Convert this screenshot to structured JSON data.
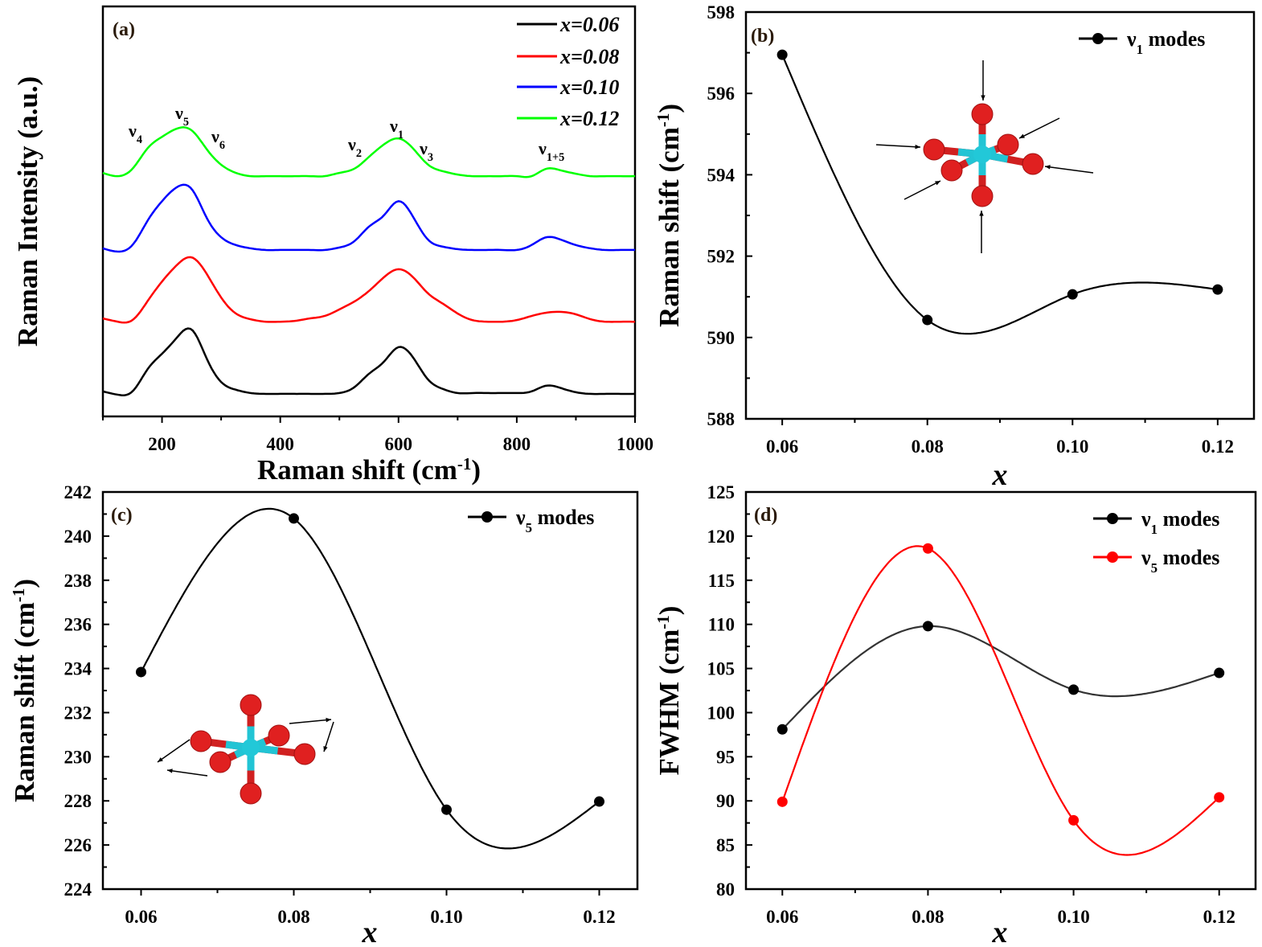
{
  "colors": {
    "black": "#000000",
    "red": "#ff0000",
    "blue": "#0000ff",
    "green": "#00ff00",
    "atom_o": "#e02020",
    "atom_center": "#20c8d8"
  },
  "chart_data": [
    {
      "panel": "(a)",
      "type": "line",
      "xlabel": {
        "text": "Raman shift (cm",
        "sup": "-1",
        "tail": ")"
      },
      "ylabel": {
        "text": "Raman Intensity (a.u.)"
      },
      "xlim": [
        100,
        1000
      ],
      "xticks": [
        "200",
        "400",
        "600",
        "800",
        "1000"
      ],
      "legend_position": "top-right",
      "x": [
        100,
        125,
        150,
        175,
        200,
        225,
        250,
        275,
        300,
        325,
        350,
        375,
        400,
        425,
        450,
        475,
        500,
        525,
        550,
        575,
        600,
        625,
        650,
        675,
        700,
        725,
        750,
        775,
        800,
        825,
        850,
        875,
        900,
        925,
        950,
        975,
        1000
      ],
      "series": [
        {
          "name": "x=0.06",
          "color": "#000000",
          "values": [
            0.61,
            0.53,
            0.61,
            1.14,
            1.53,
            1.92,
            2.12,
            1.43,
            0.84,
            0.65,
            0.57,
            0.55,
            0.55,
            0.55,
            0.55,
            0.55,
            0.57,
            0.71,
            1.04,
            1.33,
            1.69,
            1.43,
            0.9,
            0.67,
            0.57,
            0.57,
            0.57,
            0.57,
            0.57,
            0.61,
            0.75,
            0.69,
            0.59,
            0.55,
            0.55,
            0.55,
            0.55
          ]
        },
        {
          "name": "x=0.08",
          "color": "#ff0000",
          "values": [
            2.39,
            2.31,
            2.35,
            2.8,
            3.29,
            3.69,
            3.88,
            3.49,
            2.9,
            2.51,
            2.37,
            2.31,
            2.31,
            2.33,
            2.39,
            2.45,
            2.61,
            2.8,
            3.06,
            3.39,
            3.59,
            3.39,
            3.0,
            2.75,
            2.51,
            2.35,
            2.31,
            2.31,
            2.35,
            2.45,
            2.53,
            2.55,
            2.49,
            2.37,
            2.31,
            2.31,
            2.31
          ]
        },
        {
          "name": "x=0.10",
          "color": "#0000ff",
          "values": [
            4.1,
            4.02,
            4.18,
            4.76,
            5.25,
            5.59,
            5.55,
            4.86,
            4.37,
            4.18,
            4.1,
            4.06,
            4.06,
            4.06,
            4.06,
            4.06,
            4.12,
            4.27,
            4.63,
            4.9,
            5.25,
            4.86,
            4.31,
            4.14,
            4.08,
            4.06,
            4.06,
            4.06,
            4.06,
            4.18,
            4.37,
            4.31,
            4.18,
            4.1,
            4.06,
            4.06,
            4.06
          ]
        },
        {
          "name": "x=0.12",
          "color": "#00ff00",
          "values": [
            5.94,
            5.86,
            6.04,
            6.53,
            6.82,
            7.02,
            6.98,
            6.53,
            6.14,
            5.94,
            5.86,
            5.86,
            5.86,
            5.86,
            5.86,
            5.86,
            5.94,
            6.04,
            6.33,
            6.63,
            6.78,
            6.53,
            6.14,
            5.98,
            5.9,
            5.86,
            5.86,
            5.86,
            5.86,
            5.86,
            6.04,
            6.0,
            5.92,
            5.86,
            5.86,
            5.86,
            5.86
          ]
        }
      ],
      "annotations": [
        {
          "base": "ν",
          "sub": "4"
        },
        {
          "base": "ν",
          "sub": "5"
        },
        {
          "base": "ν",
          "sub": "6"
        },
        {
          "base": "ν",
          "sub": "2"
        },
        {
          "base": "ν",
          "sub": "1"
        },
        {
          "base": "ν",
          "sub": "3"
        },
        {
          "base": "ν",
          "sub": "1+5"
        }
      ]
    },
    {
      "panel": "(b)",
      "type": "line",
      "xlabel": {
        "text": "x"
      },
      "ylabel": {
        "text": "Raman shift (cm",
        "sup": "-1",
        "tail": ")"
      },
      "xlim": [
        0.055,
        0.125
      ],
      "ylim": [
        588,
        598
      ],
      "xticks": [
        "0.06",
        "0.08",
        "0.10",
        "0.12"
      ],
      "yticks": [
        "588",
        "590",
        "592",
        "594",
        "596",
        "598"
      ],
      "legend_position": "top-right",
      "x": [
        0.06,
        0.08,
        0.1,
        0.12
      ],
      "series": [
        {
          "label": {
            "base": "ν",
            "sub": "1",
            "rest": " modes"
          },
          "color": "#000000",
          "values": [
            596.95,
            590.43,
            591.06,
            591.18
          ]
        }
      ]
    },
    {
      "panel": "(c)",
      "type": "line",
      "xlabel": {
        "text": "x"
      },
      "ylabel": {
        "text": "Raman shift (cm",
        "sup": "-1",
        "tail": ")"
      },
      "xlim": [
        0.055,
        0.125
      ],
      "ylim": [
        224,
        242
      ],
      "xticks": [
        "0.06",
        "0.08",
        "0.10",
        "0.12"
      ],
      "yticks": [
        "224",
        "226",
        "228",
        "230",
        "232",
        "234",
        "236",
        "238",
        "240",
        "242"
      ],
      "legend_position": "top-right",
      "x": [
        0.06,
        0.08,
        0.1,
        0.12
      ],
      "series": [
        {
          "label": {
            "base": "ν",
            "sub": "5",
            "rest": " modes"
          },
          "color": "#000000",
          "values": [
            233.84,
            240.8,
            227.6,
            227.97
          ]
        }
      ]
    },
    {
      "panel": "(d)",
      "type": "line",
      "xlabel": {
        "text": "x"
      },
      "ylabel": {
        "text": "FWHM (cm",
        "sup": "-1",
        "tail": ")"
      },
      "xlim": [
        0.055,
        0.125
      ],
      "ylim": [
        80,
        125
      ],
      "xticks": [
        "0.06",
        "0.08",
        "0.10",
        "0.12"
      ],
      "yticks": [
        "80",
        "85",
        "90",
        "95",
        "100",
        "105",
        "110",
        "115",
        "120",
        "125"
      ],
      "legend_position": "top-right",
      "x": [
        0.06,
        0.08,
        0.1,
        0.12
      ],
      "series": [
        {
          "label": {
            "base": "ν",
            "sub": "1",
            "rest": " modes"
          },
          "color": "#000000",
          "values": [
            98.1,
            109.8,
            102.6,
            104.5
          ]
        },
        {
          "label": {
            "base": "ν",
            "sub": "5",
            "rest": " modes"
          },
          "color": "#ff0000",
          "values": [
            89.9,
            118.6,
            87.8,
            90.4
          ]
        }
      ]
    }
  ]
}
